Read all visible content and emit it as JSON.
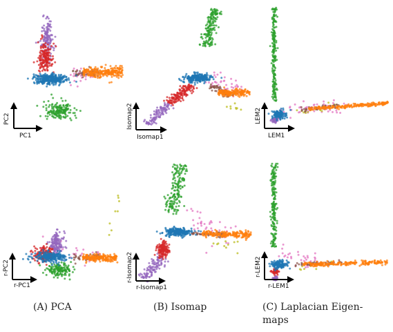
{
  "colors": {
    "blue": "#1f77b4",
    "orange": "#ff7f0e",
    "green": "#2ca02c",
    "red": "#d62728",
    "purple": "#9467bd",
    "brown": "#8c564b",
    "pink": "#e377c2",
    "olive": "#bcbd22"
  },
  "captions": [
    {
      "lines": [
        "(A) PCA"
      ]
    },
    {
      "lines": [
        "(B) Isomap"
      ]
    },
    {
      "lines": [
        "(C) Laplacian Eigen-",
        "maps"
      ]
    }
  ],
  "chart_data": [
    {
      "type": "scatter",
      "xlabel": "PC1",
      "ylabel": "PC2",
      "clusters": [
        {
          "color": "purple",
          "shape": "blob",
          "center": [
            0.05,
            0.82
          ],
          "spread": [
            0.12,
            0.34
          ],
          "n": 140
        },
        {
          "color": "red",
          "shape": "blob",
          "center": [
            0.0,
            0.42
          ],
          "spread": [
            0.14,
            0.28
          ],
          "n": 180
        },
        {
          "color": "green",
          "shape": "blob",
          "center": [
            0.28,
            -0.62
          ],
          "spread": [
            0.3,
            0.18
          ],
          "n": 170
        },
        {
          "color": "blue",
          "shape": "blob",
          "center": [
            0.12,
            0.0
          ],
          "spread": [
            0.32,
            0.1
          ],
          "n": 320
        },
        {
          "color": "orange",
          "shape": "band",
          "from": [
            0.75,
            0.14
          ],
          "to": [
            1.52,
            0.14
          ],
          "width": 0.1,
          "n": 240
        },
        {
          "color": "brown",
          "shape": "band",
          "from": [
            0.55,
            0.12
          ],
          "to": [
            1.1,
            0.12
          ],
          "width": 0.08,
          "n": 60
        },
        {
          "color": "pink",
          "shape": "band",
          "from": [
            0.5,
            0.1
          ],
          "to": [
            0.95,
            0.1
          ],
          "width": 0.16,
          "n": 25
        }
      ]
    },
    {
      "type": "scatter",
      "xlabel": "Isomap1",
      "ylabel": "Isomap2",
      "clusters": [
        {
          "color": "green",
          "shape": "band",
          "from": [
            0.7,
            1.85
          ],
          "to": [
            0.85,
            2.9
          ],
          "width": 0.1,
          "n": 170
        },
        {
          "color": "blue",
          "shape": "blob",
          "center": [
            0.55,
            0.95
          ],
          "spread": [
            0.22,
            0.12
          ],
          "n": 260
        },
        {
          "color": "orange",
          "shape": "band",
          "from": [
            0.9,
            0.55
          ],
          "to": [
            1.45,
            0.55
          ],
          "width": 0.09,
          "n": 170
        },
        {
          "color": "red",
          "shape": "band",
          "from": [
            0.05,
            0.25
          ],
          "to": [
            0.45,
            0.75
          ],
          "width": 0.12,
          "n": 150
        },
        {
          "color": "purple",
          "shape": "band",
          "from": [
            -0.3,
            -0.35
          ],
          "to": [
            0.05,
            0.25
          ],
          "width": 0.09,
          "n": 110
        },
        {
          "color": "brown",
          "shape": "band",
          "from": [
            0.75,
            0.75
          ],
          "to": [
            1.15,
            0.45
          ],
          "width": 0.08,
          "n": 60
        },
        {
          "color": "pink",
          "shape": "band",
          "from": [
            0.75,
            1.0
          ],
          "to": [
            1.3,
            0.6
          ],
          "width": 0.22,
          "n": 40
        },
        {
          "color": "olive",
          "shape": "band",
          "from": [
            1.05,
            0.2
          ],
          "to": [
            1.3,
            0.05
          ],
          "width": 0.12,
          "n": 8
        }
      ]
    },
    {
      "type": "scatter",
      "xlabel": "LEM1",
      "ylabel": "LEM2",
      "clusters": [
        {
          "color": "green",
          "shape": "band",
          "from": [
            0.02,
            0.25
          ],
          "to": [
            0.02,
            1.55
          ],
          "width": 0.03,
          "n": 210
        },
        {
          "color": "blue",
          "shape": "blob",
          "center": [
            0.08,
            0.06
          ],
          "spread": [
            0.08,
            0.06
          ],
          "n": 140
        },
        {
          "color": "purple",
          "shape": "blob",
          "center": [
            0.03,
            -0.02
          ],
          "spread": [
            0.04,
            0.04
          ],
          "n": 60
        },
        {
          "color": "orange",
          "shape": "band",
          "from": [
            0.45,
            0.14
          ],
          "to": [
            1.45,
            0.22
          ],
          "width": 0.025,
          "n": 200
        },
        {
          "color": "pink",
          "shape": "band",
          "from": [
            0.05,
            0.08
          ],
          "to": [
            0.95,
            0.2
          ],
          "width": 0.1,
          "n": 50
        },
        {
          "color": "brown",
          "shape": "band",
          "from": [
            0.35,
            0.12
          ],
          "to": [
            0.9,
            0.2
          ],
          "width": 0.03,
          "n": 40
        },
        {
          "color": "olive",
          "shape": "band",
          "from": [
            0.3,
            0.1
          ],
          "to": [
            0.8,
            0.18
          ],
          "width": 0.05,
          "n": 15
        }
      ]
    },
    {
      "type": "scatter",
      "xlabel": "r-PC1",
      "ylabel": "r-PC2",
      "clusters": [
        {
          "color": "purple",
          "shape": "blob",
          "center": [
            0.25,
            0.12
          ],
          "spread": [
            0.14,
            0.12
          ],
          "n": 140
        },
        {
          "color": "red",
          "shape": "blob",
          "center": [
            0.05,
            0.0
          ],
          "spread": [
            0.18,
            0.08
          ],
          "n": 160
        },
        {
          "color": "blue",
          "shape": "blob",
          "center": [
            0.15,
            -0.02
          ],
          "spread": [
            0.28,
            0.05
          ],
          "n": 230
        },
        {
          "color": "green",
          "shape": "blob",
          "center": [
            0.3,
            -0.16
          ],
          "spread": [
            0.22,
            0.06
          ],
          "n": 150
        },
        {
          "color": "orange",
          "shape": "band",
          "from": [
            0.7,
            -0.03
          ],
          "to": [
            1.3,
            -0.03
          ],
          "width": 0.04,
          "n": 200
        },
        {
          "color": "brown",
          "shape": "band",
          "from": [
            0.55,
            -0.03
          ],
          "to": [
            1.0,
            -0.03
          ],
          "width": 0.04,
          "n": 50
        },
        {
          "color": "pink",
          "shape": "band",
          "from": [
            -0.2,
            0.05
          ],
          "to": [
            1.0,
            0.0
          ],
          "width": 0.1,
          "n": 30
        },
        {
          "color": "olive",
          "shape": "band",
          "from": [
            1.15,
            0.2
          ],
          "to": [
            1.35,
            0.65
          ],
          "width": 0.05,
          "n": 8
        }
      ]
    },
    {
      "type": "scatter",
      "xlabel": "r-Isomap1",
      "ylabel": "r-Isomap2",
      "clusters": [
        {
          "color": "green",
          "shape": "band",
          "from": [
            0.4,
            1.0
          ],
          "to": [
            0.55,
            1.75
          ],
          "width": 0.11,
          "n": 170
        },
        {
          "color": "blue",
          "shape": "blob",
          "center": [
            0.5,
            0.72
          ],
          "spread": [
            0.2,
            0.06
          ],
          "n": 230
        },
        {
          "color": "orange",
          "shape": "band",
          "from": [
            0.85,
            0.7
          ],
          "to": [
            1.55,
            0.68
          ],
          "width": 0.05,
          "n": 200
        },
        {
          "color": "red",
          "shape": "blob",
          "center": [
            0.28,
            0.45
          ],
          "spread": [
            0.09,
            0.12
          ],
          "n": 130
        },
        {
          "color": "purple",
          "shape": "band",
          "from": [
            0.0,
            0.0
          ],
          "to": [
            0.3,
            0.35
          ],
          "width": 0.1,
          "n": 110
        },
        {
          "color": "brown",
          "shape": "band",
          "from": [
            0.7,
            0.7
          ],
          "to": [
            1.2,
            0.68
          ],
          "width": 0.04,
          "n": 50
        },
        {
          "color": "pink",
          "shape": "band",
          "from": [
            0.6,
            1.0
          ],
          "to": [
            1.3,
            0.6
          ],
          "width": 0.22,
          "n": 40
        },
        {
          "color": "olive",
          "shape": "band",
          "from": [
            1.0,
            0.55
          ],
          "to": [
            1.4,
            0.5
          ],
          "width": 0.1,
          "n": 10
        }
      ]
    },
    {
      "type": "scatter",
      "xlabel": "r-LEM1",
      "ylabel": "r-LEM2",
      "clusters": [
        {
          "color": "green",
          "shape": "band",
          "from": [
            0.02,
            0.35
          ],
          "to": [
            0.02,
            1.6
          ],
          "width": 0.035,
          "n": 200
        },
        {
          "color": "blue",
          "shape": "blob",
          "center": [
            0.09,
            0.1
          ],
          "spread": [
            0.1,
            0.06
          ],
          "n": 150
        },
        {
          "color": "red",
          "shape": "blob",
          "center": [
            0.04,
            0.0
          ],
          "spread": [
            0.04,
            0.04
          ],
          "n": 60
        },
        {
          "color": "purple",
          "shape": "blob",
          "center": [
            0.04,
            -0.1
          ],
          "spread": [
            0.03,
            0.03
          ],
          "n": 40
        },
        {
          "color": "orange",
          "shape": "band",
          "from": [
            0.4,
            0.1
          ],
          "to": [
            1.5,
            0.14
          ],
          "width": 0.03,
          "n": 210
        },
        {
          "color": "brown",
          "shape": "band",
          "from": [
            0.3,
            0.1
          ],
          "to": [
            0.9,
            0.13
          ],
          "width": 0.03,
          "n": 50
        },
        {
          "color": "pink",
          "shape": "band",
          "from": [
            0.1,
            0.3
          ],
          "to": [
            0.6,
            0.1
          ],
          "width": 0.15,
          "n": 35
        },
        {
          "color": "olive",
          "shape": "band",
          "from": [
            0.3,
            0.05
          ],
          "to": [
            0.8,
            0.12
          ],
          "width": 0.04,
          "n": 12
        }
      ]
    }
  ]
}
